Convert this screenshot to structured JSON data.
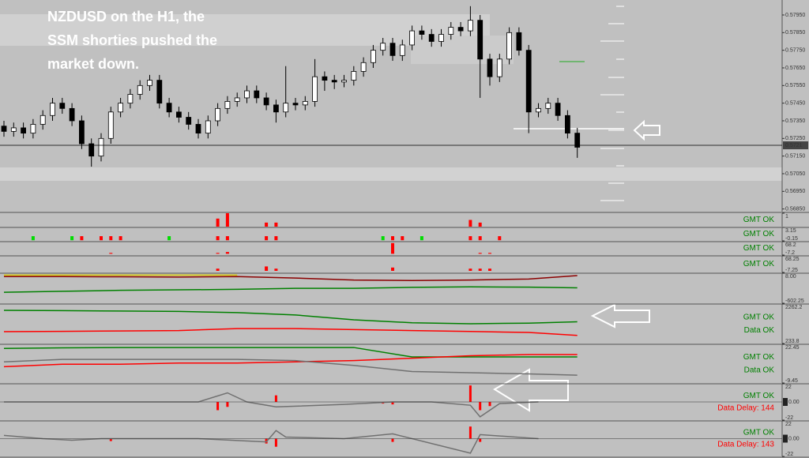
{
  "chart_data": [
    {
      "type": "candlestick",
      "annotation": [
        "NZDUSD on the H1, the",
        "SSM shorties pushed the",
        "market down."
      ],
      "open": [
        0.5732,
        0.5729,
        0.5731,
        0.5728,
        0.5733,
        0.5738,
        0.5745,
        0.5742,
        0.5735,
        0.5722,
        0.5715,
        0.5725,
        0.574,
        0.5745,
        0.575,
        0.5755,
        0.5758,
        0.5745,
        0.574,
        0.5737,
        0.5733,
        0.5728,
        0.5735,
        0.5742,
        0.5746,
        0.5748,
        0.5752,
        0.5748,
        0.5744,
        0.574,
        0.5745,
        0.5744,
        0.5746,
        0.576,
        0.5758,
        0.5757,
        0.5758,
        0.5763,
        0.5768,
        0.5775,
        0.5779,
        0.5772,
        0.5778,
        0.5786,
        0.5784,
        0.578,
        0.5784,
        0.5788,
        0.5786,
        0.5792,
        0.577,
        0.576,
        0.577,
        0.5785,
        0.5775,
        0.574,
        0.5742,
        0.5745,
        0.5738,
        0.5728
      ],
      "high": [
        0.5735,
        0.5734,
        0.5734,
        0.5736,
        0.5741,
        0.5748,
        0.5748,
        0.5745,
        0.5738,
        0.5725,
        0.5728,
        0.5743,
        0.5748,
        0.5753,
        0.5758,
        0.5761,
        0.5761,
        0.5748,
        0.5743,
        0.574,
        0.5736,
        0.5738,
        0.5745,
        0.5749,
        0.5751,
        0.5755,
        0.5755,
        0.5751,
        0.5747,
        0.5766,
        0.5748,
        0.5749,
        0.577,
        0.5763,
        0.5761,
        0.5761,
        0.5766,
        0.5771,
        0.5778,
        0.5782,
        0.5782,
        0.5781,
        0.5789,
        0.5789,
        0.5787,
        0.5787,
        0.5791,
        0.5791,
        0.58,
        0.5795,
        0.5773,
        0.5773,
        0.5788,
        0.5788,
        0.5778,
        0.5745,
        0.5748,
        0.5748,
        0.5741,
        0.5731
      ],
      "low": [
        0.5726,
        0.5726,
        0.5725,
        0.5725,
        0.573,
        0.5735,
        0.5739,
        0.5732,
        0.5719,
        0.5709,
        0.5712,
        0.5722,
        0.5737,
        0.5742,
        0.5747,
        0.5752,
        0.5742,
        0.5737,
        0.5734,
        0.573,
        0.5725,
        0.5725,
        0.5732,
        0.5739,
        0.5743,
        0.5745,
        0.5745,
        0.5741,
        0.5734,
        0.5737,
        0.5741,
        0.5741,
        0.5743,
        0.5752,
        0.5753,
        0.5754,
        0.5755,
        0.576,
        0.5765,
        0.5772,
        0.5769,
        0.5769,
        0.5775,
        0.5781,
        0.5777,
        0.5777,
        0.5781,
        0.5783,
        0.5783,
        0.5748,
        0.5755,
        0.5757,
        0.5767,
        0.5772,
        0.5728,
        0.5737,
        0.5739,
        0.5735,
        0.5725,
        0.5714
      ],
      "close": [
        0.5729,
        0.5731,
        0.5728,
        0.5733,
        0.5738,
        0.5745,
        0.5742,
        0.5735,
        0.5722,
        0.5715,
        0.5725,
        0.574,
        0.5745,
        0.575,
        0.5755,
        0.5758,
        0.5745,
        0.574,
        0.5737,
        0.5733,
        0.5728,
        0.5735,
        0.5742,
        0.5746,
        0.5748,
        0.5752,
        0.5748,
        0.5744,
        0.574,
        0.5745,
        0.5744,
        0.5746,
        0.576,
        0.5758,
        0.5757,
        0.5758,
        0.5763,
        0.5768,
        0.5775,
        0.5779,
        0.5772,
        0.5778,
        0.5786,
        0.5784,
        0.578,
        0.5784,
        0.5788,
        0.5786,
        0.5792,
        0.577,
        0.576,
        0.577,
        0.5785,
        0.5775,
        0.574,
        0.5742,
        0.5745,
        0.5738,
        0.5728,
        0.572
      ],
      "up_color": "#ffffff",
      "down_color": "#000000",
      "ylim": [
        0.56835,
        0.58035
      ],
      "yticks": [
        {
          "value": 0.5795,
          "label": "0.57950"
        },
        {
          "value": 0.5785,
          "label": "0.57850"
        },
        {
          "value": 0.5775,
          "label": "0.57750"
        },
        {
          "value": 0.5765,
          "label": "0.57650"
        },
        {
          "value": 0.5755,
          "label": "0.57550"
        },
        {
          "value": 0.5745,
          "label": "0.57450"
        },
        {
          "value": 0.5735,
          "label": "0.57350"
        },
        {
          "value": 0.5725,
          "label": "0.57250"
        },
        {
          "value": 0.5715,
          "label": "0.57150"
        },
        {
          "value": 0.5705,
          "label": "0.57050"
        },
        {
          "value": 0.5695,
          "label": "0.56950"
        },
        {
          "value": 0.5685,
          "label": "0.56850"
        }
      ],
      "last_price": {
        "value": 0.57211,
        "label": "0.5721"
      }
    },
    {
      "type": "bar",
      "ylim": [
        0,
        1
      ],
      "yticks": [
        1
      ],
      "x": [
        22,
        23,
        27,
        28,
        48,
        49
      ],
      "values": [
        0.6,
        1,
        0.3,
        0.3,
        0.5,
        0.3
      ],
      "color": "#ff0000",
      "labels": [
        "GMT OK"
      ],
      "label_colors": [
        "#008000"
      ]
    },
    {
      "type": "bar",
      "ylim": [
        -0.15,
        3.15
      ],
      "yticks": [
        3.15,
        -0.15
      ],
      "x": [
        3,
        7,
        8,
        10,
        11,
        12,
        17,
        22,
        23,
        27,
        28,
        39,
        40,
        41,
        43,
        48,
        49,
        51
      ],
      "values": [
        1,
        1,
        1,
        1,
        1,
        1,
        1,
        1,
        1,
        1,
        1,
        1,
        1,
        1,
        1,
        1,
        1,
        1
      ],
      "colors": [
        "#00dd00",
        "#00dd00",
        "#ff0000",
        "#ff0000",
        "#ff0000",
        "#ff0000",
        "#00dd00",
        "#ff0000",
        "#ff0000",
        "#ff0000",
        "#ff0000",
        "#00dd00",
        "#ff0000",
        "#ff0000",
        "#00dd00",
        "#ff0000",
        "#ff0000",
        "#ff0000"
      ],
      "labels": [
        "GMT OK"
      ],
      "label_colors": [
        "#008000"
      ]
    },
    {
      "type": "bar",
      "ylim": [
        -7.2,
        68.2
      ],
      "yticks": [
        68.2,
        -7.2
      ],
      "x": [
        11,
        22,
        23,
        40,
        49,
        50
      ],
      "values": [
        5,
        5,
        10,
        60,
        5,
        5
      ],
      "color": "#ff0000",
      "labels": [
        "GMT OK"
      ],
      "label_colors": [
        "#008000"
      ]
    },
    {
      "type": "bar",
      "ylim": [
        -7.25,
        68.25
      ],
      "yticks": [
        68.25,
        -7.25
      ],
      "x": [
        22,
        27,
        28,
        40,
        48,
        49,
        50
      ],
      "values": [
        10,
        20,
        10,
        15,
        10,
        10,
        10
      ],
      "color": "#ff0000",
      "labels": [
        "GMT OK"
      ],
      "label_colors": [
        "#008000"
      ]
    },
    {
      "type": "line",
      "ylim": [
        -602.25,
        8
      ],
      "yticks": [
        {
          "value": 8,
          "label": "8.00"
        },
        -602.25
      ],
      "x": [
        0,
        6,
        12,
        18,
        24,
        30,
        36,
        42,
        48,
        54,
        59
      ],
      "series": [
        {
          "color": "#d4c400",
          "values": [
            -30,
            -30,
            -30,
            -30,
            -30,
            null,
            null,
            null,
            null,
            null,
            null
          ]
        },
        {
          "color": "#8b0000",
          "values": [
            -60,
            -60,
            -65,
            -70,
            -60,
            -90,
            -130,
            -140,
            -130,
            -110,
            -40
          ]
        },
        {
          "color": "#008000",
          "values": [
            -380,
            -360,
            -340,
            -330,
            -320,
            -300,
            -300,
            -280,
            -270,
            -275,
            -290
          ]
        }
      ]
    },
    {
      "type": "line",
      "ylim": [
        233.8,
        2262.2
      ],
      "yticks": [
        2262.2,
        233.8
      ],
      "x": [
        0,
        6,
        12,
        18,
        24,
        30,
        36,
        42,
        48,
        54,
        59
      ],
      "series": [
        {
          "color": "#008000",
          "values": [
            1940,
            1920,
            1900,
            1880,
            1820,
            1700,
            1450,
            1300,
            1250,
            1280,
            1350
          ]
        },
        {
          "color": "#ff0000",
          "values": [
            840,
            860,
            880,
            900,
            1000,
            1000,
            950,
            900,
            850,
            800,
            650
          ]
        }
      ],
      "labels": [
        "GMT OK",
        "Data OK"
      ],
      "label_colors": [
        "#008000",
        "#008000"
      ]
    },
    {
      "type": "line",
      "ylim": [
        -9.45,
        22.45
      ],
      "yticks": [
        22.45,
        -9.45
      ],
      "x": [
        0,
        6,
        12,
        18,
        24,
        30,
        36,
        42,
        48,
        54,
        59
      ],
      "series": [
        {
          "color": "#008000",
          "values": [
            19,
            19.5,
            19.8,
            19.8,
            19.8,
            19.8,
            19.8,
            12,
            12,
            12,
            12
          ]
        },
        {
          "color": "#ff0000",
          "values": [
            4,
            6,
            6,
            7,
            7,
            8,
            9,
            11,
            13,
            14,
            14
          ]
        },
        {
          "color": "#707070",
          "values": [
            8,
            10,
            10,
            10,
            10,
            9,
            5,
            0,
            -1,
            -2,
            -3
          ]
        }
      ],
      "labels": [
        "GMT OK",
        "Data OK"
      ],
      "label_colors": [
        "#008000",
        "#008000"
      ]
    },
    {
      "type": "line",
      "ylim": [
        -22,
        22
      ],
      "yticks": [
        22,
        -22
      ],
      "x": [
        0,
        10,
        20,
        23,
        25,
        28,
        35,
        40,
        44,
        48,
        49,
        51,
        55
      ],
      "series": [
        {
          "color": "#707070",
          "values": [
            0,
            0,
            0,
            11,
            0,
            -6,
            -3,
            0,
            0,
            -4,
            -18,
            -2,
            0
          ]
        }
      ],
      "bars": {
        "x": [
          22,
          23,
          28,
          39,
          40,
          48,
          49,
          50
        ],
        "values": [
          -10,
          -6,
          8,
          -2,
          -3,
          20,
          -10,
          -5
        ],
        "color": "#ff0000"
      },
      "last_value": {
        "value": 0,
        "label": "0.00"
      },
      "labels": [
        "GMT OK",
        "Data Delay: 144"
      ],
      "label_colors": [
        "#008000",
        "#ff0000"
      ]
    },
    {
      "type": "line",
      "ylim": [
        -22,
        22
      ],
      "yticks": [
        22,
        -22
      ],
      "x": [
        0,
        4,
        7,
        10,
        20,
        27,
        28,
        29,
        35,
        40,
        48,
        49,
        55
      ],
      "series": [
        {
          "color": "#707070",
          "values": [
            4,
            0,
            -2,
            0,
            0,
            -4,
            10,
            2,
            0,
            6,
            -18,
            5,
            0
          ]
        }
      ],
      "bars": {
        "x": [
          11,
          27,
          28,
          40,
          48,
          49
        ],
        "values": [
          -3,
          -6,
          -10,
          -4,
          15,
          -4
        ],
        "color": "#ff0000"
      },
      "last_value": {
        "value": 0,
        "label": "0.00"
      },
      "labels": [
        "GMT OK",
        "Data Delay: 143"
      ],
      "label_colors": [
        "#008000",
        "#ff0000"
      ]
    }
  ]
}
